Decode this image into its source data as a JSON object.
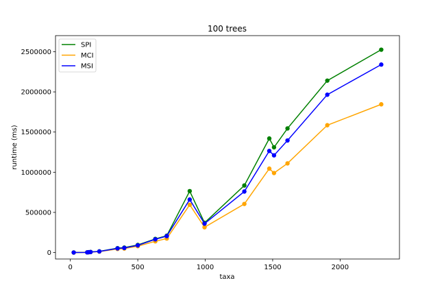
{
  "chart_data": {
    "type": "line",
    "title": "100 trees",
    "xlabel": "taxa",
    "ylabel": "runtime (ms)",
    "xlim": [
      -110,
      2440
    ],
    "ylim": [
      -80000,
      2700000
    ],
    "xticks": [
      0,
      500,
      1000,
      1500,
      2000
    ],
    "yticks": [
      0,
      500000,
      1000000,
      1500000,
      2000000,
      2500000
    ],
    "xtick_labels": [
      "0",
      "500",
      "1000",
      "1500",
      "2000"
    ],
    "ytick_labels": [
      "0",
      "500000",
      "1000000",
      "1500000",
      "2000000",
      "2500000"
    ],
    "grid": false,
    "legend_position": "upper-left",
    "x": [
      25,
      125,
      135,
      150,
      215,
      350,
      400,
      500,
      630,
      715,
      885,
      995,
      1290,
      1475,
      1510,
      1610,
      1905,
      2305
    ],
    "series": [
      {
        "name": "SPI",
        "color": "#008000",
        "values": [
          1000,
          3000,
          5000,
          8000,
          15000,
          55000,
          62000,
          95000,
          170000,
          210000,
          765000,
          370000,
          835000,
          1420000,
          1310000,
          1545000,
          2140000,
          2525000
        ]
      },
      {
        "name": "MCI",
        "color": "#ffa500",
        "values": [
          500,
          2000,
          4000,
          6000,
          12000,
          45000,
          50000,
          80000,
          140000,
          175000,
          595000,
          315000,
          605000,
          1045000,
          990000,
          1110000,
          1585000,
          1845000
        ]
      },
      {
        "name": "MSI",
        "color": "#0000ff",
        "values": [
          800,
          2500,
          4500,
          7000,
          14000,
          52000,
          58000,
          90000,
          165000,
          205000,
          660000,
          360000,
          760000,
          1265000,
          1210000,
          1395000,
          1965000,
          2340000
        ]
      }
    ]
  }
}
